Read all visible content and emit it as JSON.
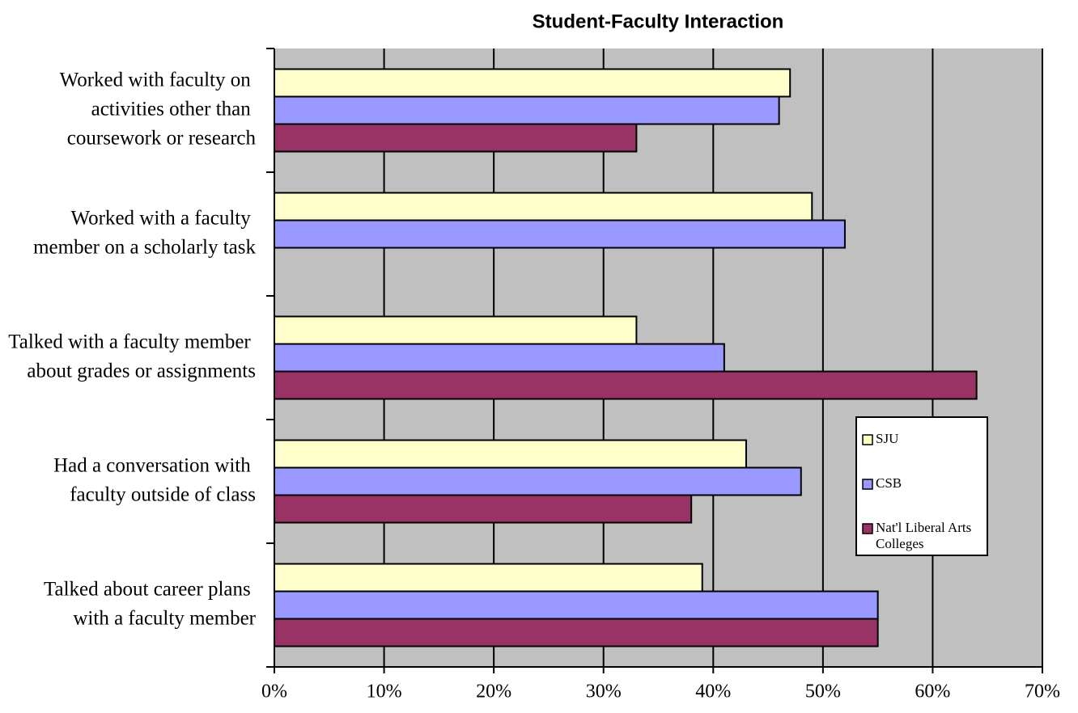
{
  "chart_data": {
    "type": "hbar",
    "title": "Student-Faculty Interaction",
    "categories": [
      "Worked with faculty on activities other than coursework or research",
      "Worked with a faculty member on a scholarly task",
      "Talked with a faculty member about grades or assignments",
      "Had a conversation with faculty outside of class",
      "Talked about career plans with a faculty member"
    ],
    "series": [
      {
        "name": "SJU",
        "color": "#ffffcc",
        "values": [
          47,
          49,
          33,
          43,
          39
        ]
      },
      {
        "name": "CSB",
        "color": "#9999ff",
        "values": [
          46,
          52,
          41,
          48,
          55
        ]
      },
      {
        "name": "Nat'l Liberal Arts Colleges",
        "color": "#993366",
        "values": [
          33,
          null,
          64,
          38,
          55
        ]
      }
    ],
    "xlim": [
      0,
      70
    ],
    "xticks": [
      {
        "value": 0,
        "label": "0%"
      },
      {
        "value": 10,
        "label": "10%"
      },
      {
        "value": 20,
        "label": "20%"
      },
      {
        "value": 30,
        "label": "30%"
      },
      {
        "value": 40,
        "label": "40%"
      },
      {
        "value": 50,
        "label": "50%"
      },
      {
        "value": 60,
        "label": "60%"
      },
      {
        "value": 70,
        "label": "70%"
      }
    ],
    "grid": true,
    "plot_background": "#c0c0c0",
    "legend": "right"
  }
}
